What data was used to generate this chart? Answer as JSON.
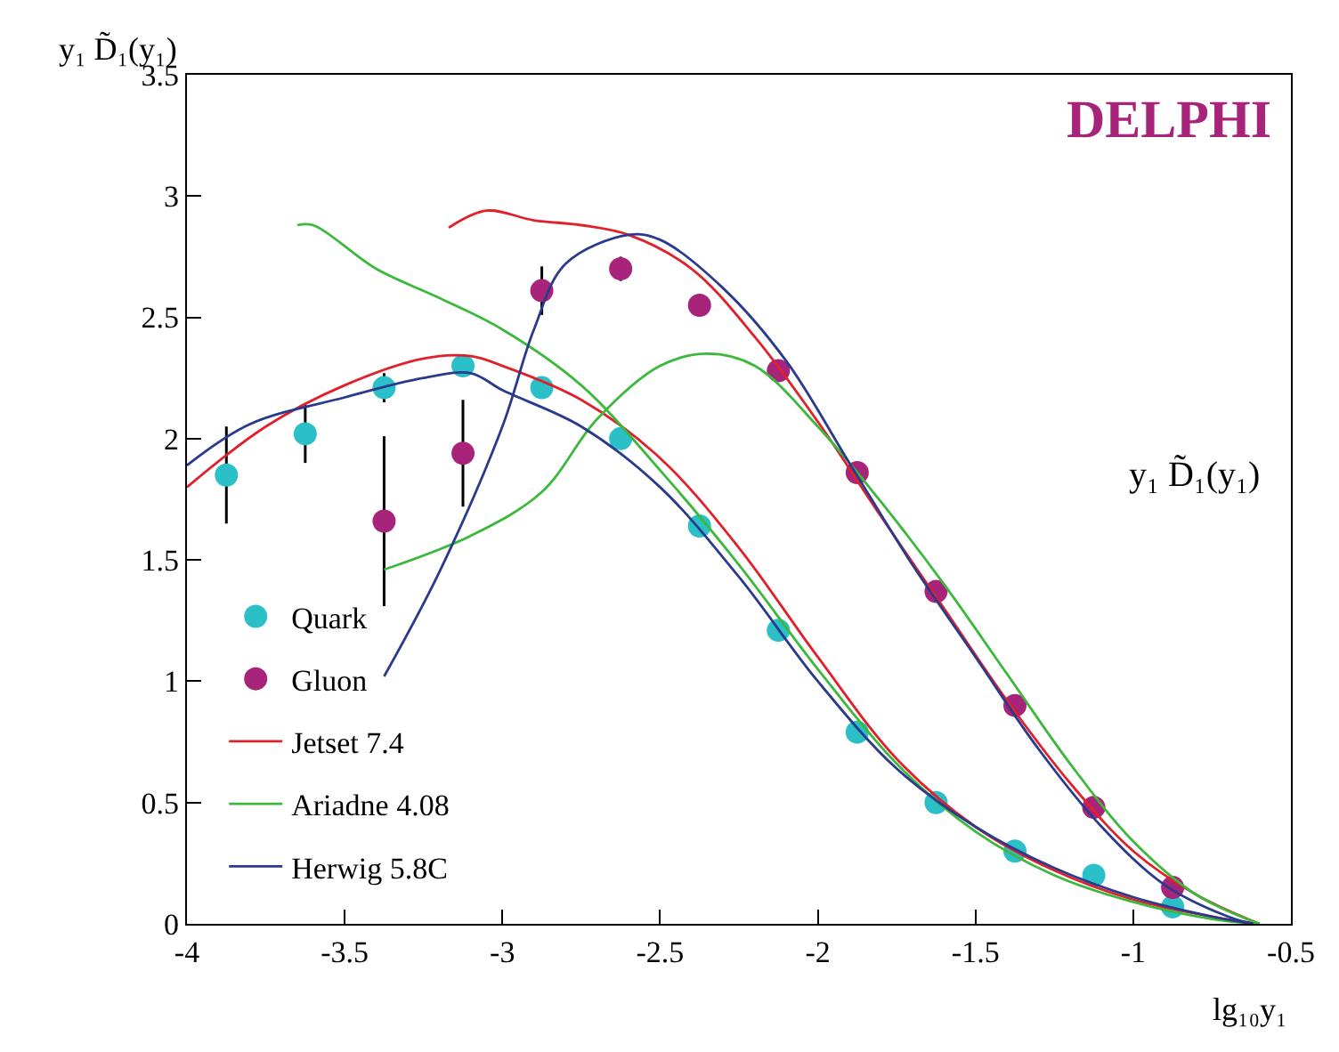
{
  "chart_data": {
    "type": "scatter",
    "xlabel": "lg₁₀y₁",
    "ylabel": "y₁ D̃₁(y₁)",
    "annotations": [
      "DELPHI",
      "y₁ D̃₁(y₁)"
    ],
    "xlim": [
      -4,
      -0.5
    ],
    "xticks": [
      -4,
      -3.5,
      -3,
      -2.5,
      -2,
      -1.5,
      -1,
      -0.5
    ],
    "ylim": [
      0,
      3.5
    ],
    "yticks": [
      0,
      0.5,
      1,
      1.5,
      2,
      2.5,
      3,
      3.5
    ],
    "legend": "bottom left",
    "series": [
      {
        "name": "Quark",
        "marker": "circle",
        "color": "#2bbfc8",
        "x": [
          -3.875,
          -3.625,
          -3.375,
          -3.125,
          -2.875,
          -2.625,
          -2.375,
          -2.125,
          -1.875,
          -1.625,
          -1.375,
          -1.125,
          -0.875
        ],
        "values": [
          1.85,
          2.02,
          2.21,
          2.3,
          2.21,
          2.0,
          1.64,
          1.21,
          0.79,
          0.5,
          0.3,
          0.2,
          0.07
        ],
        "errors": [
          0.2,
          0.12,
          0.06,
          null,
          null,
          null,
          null,
          null,
          null,
          null,
          null,
          null,
          null
        ]
      },
      {
        "name": "Gluon",
        "marker": "circle",
        "color": "#a8237a",
        "x": [
          -3.375,
          -3.125,
          -2.875,
          -2.625,
          -2.375,
          -2.125,
          -1.875,
          -1.625,
          -1.375,
          -1.125,
          -0.875
        ],
        "values": [
          1.66,
          1.94,
          2.61,
          2.7,
          2.55,
          2.28,
          1.86,
          1.37,
          0.9,
          0.48,
          0.15
        ],
        "errors": [
          0.35,
          0.22,
          0.1,
          0.05,
          null,
          null,
          null,
          null,
          null,
          null,
          null
        ]
      },
      {
        "name": "Jetset 7.4",
        "type": "line",
        "color": "#e0202a",
        "x": [
          -4,
          -3.75,
          -3.5,
          -3.25,
          -3.1,
          -3.0,
          -2.75,
          -2.5,
          -2.25,
          -2.0,
          -1.75,
          -1.5,
          -1.25,
          -1.0,
          -0.75,
          -0.6
        ],
        "values": [
          1.8,
          2.05,
          2.22,
          2.33,
          2.34,
          2.3,
          2.16,
          1.92,
          1.55,
          1.1,
          0.68,
          0.4,
          0.22,
          0.1,
          0.03,
          0.0
        ]
      },
      {
        "type": "line",
        "color": "#e0202a",
        "x": [
          -3.17,
          -3.05,
          -2.9,
          -2.75,
          -2.6,
          -2.4,
          -2.2,
          -2.0,
          -1.8,
          -1.6,
          -1.4,
          -1.2,
          -1.0,
          -0.8,
          -0.6
        ],
        "values": [
          2.87,
          2.94,
          2.9,
          2.88,
          2.84,
          2.7,
          2.42,
          2.07,
          1.68,
          1.3,
          0.92,
          0.58,
          0.3,
          0.12,
          0.0
        ]
      },
      {
        "name": "Ariadne 4.08",
        "type": "line",
        "color": "#3cb83c",
        "x": [
          -3.65,
          -3.6,
          -3.4,
          -3.2,
          -3.0,
          -2.75,
          -2.5,
          -2.25,
          -2.0,
          -1.75,
          -1.5,
          -1.25,
          -1.0,
          -0.75,
          -0.6
        ],
        "values": [
          2.88,
          2.88,
          2.7,
          2.58,
          2.45,
          2.22,
          1.87,
          1.48,
          1.05,
          0.66,
          0.38,
          0.2,
          0.09,
          0.02,
          0.0
        ]
      },
      {
        "type": "line",
        "color": "#3cb83c",
        "x": [
          -3.375,
          -3.1,
          -2.875,
          -2.7,
          -2.5,
          -2.35,
          -2.2,
          -2.0,
          -1.8,
          -1.6,
          -1.4,
          -1.2,
          -1.0,
          -0.8,
          -0.6
        ],
        "values": [
          1.46,
          1.6,
          1.78,
          2.08,
          2.3,
          2.35,
          2.3,
          2.05,
          1.74,
          1.4,
          1.03,
          0.66,
          0.34,
          0.12,
          0.0
        ]
      },
      {
        "name": "Herwig 5.8C",
        "type": "line",
        "color": "#2a3a8c",
        "x": [
          -4,
          -3.8,
          -3.5,
          -3.25,
          -3.1,
          -3.0,
          -2.75,
          -2.5,
          -2.25,
          -2.0,
          -1.75,
          -1.5,
          -1.25,
          -1.0,
          -0.75,
          -0.62
        ],
        "values": [
          1.89,
          2.06,
          2.17,
          2.25,
          2.27,
          2.2,
          2.05,
          1.8,
          1.43,
          1.0,
          0.64,
          0.4,
          0.23,
          0.11,
          0.03,
          0.0
        ]
      },
      {
        "type": "line",
        "color": "#2a3a8c",
        "x": [
          -3.375,
          -3.2,
          -3.0,
          -2.9,
          -2.8,
          -2.6,
          -2.5,
          -2.3,
          -2.1,
          -1.9,
          -1.7,
          -1.5,
          -1.3,
          -1.1,
          -0.9,
          -0.7,
          -0.62
        ],
        "values": [
          1.02,
          1.45,
          2.05,
          2.45,
          2.72,
          2.84,
          2.82,
          2.62,
          2.32,
          1.9,
          1.48,
          1.1,
          0.72,
          0.4,
          0.16,
          0.03,
          0.0
        ]
      }
    ]
  }
}
